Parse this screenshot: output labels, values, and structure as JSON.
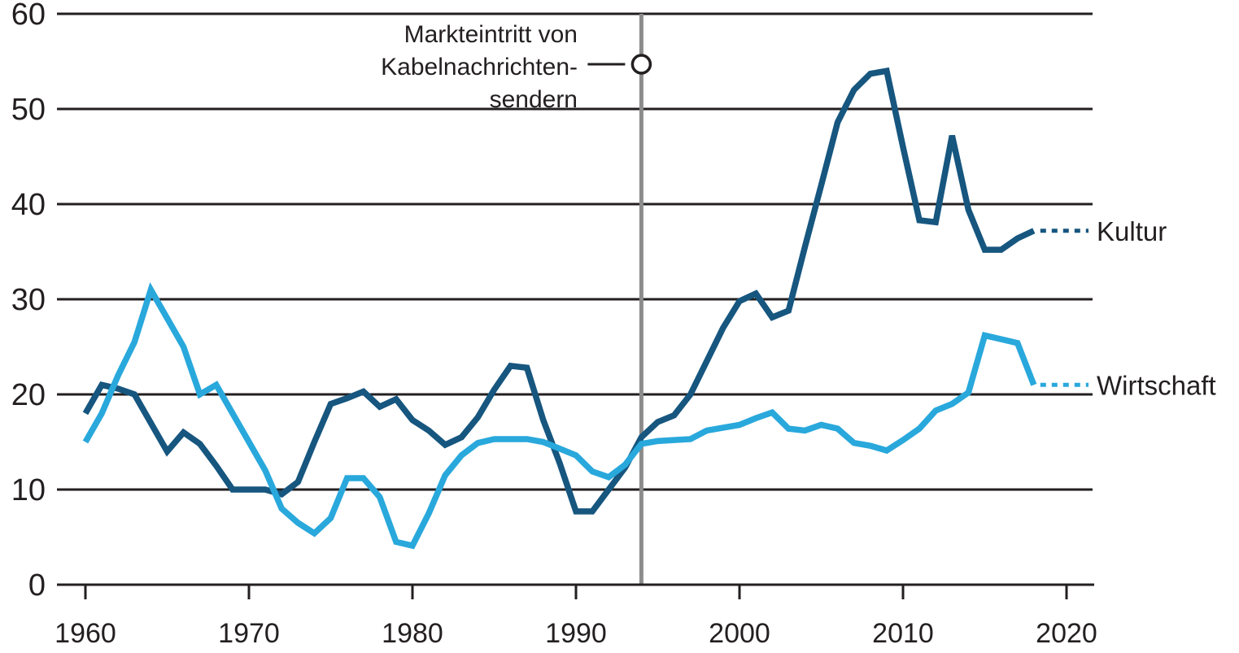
{
  "figure": {
    "background": "#ffffff",
    "colors": {
      "axis": "#231f20",
      "event_line": "#8c8c8c",
      "marker_stroke": "#231f20",
      "marker_fill": "#ffffff"
    },
    "annotation": {
      "lines": [
        "Markteintritt von",
        "Kabelnachrichten-",
        "sendern"
      ],
      "year": 1994,
      "marker": "open-circle"
    }
  },
  "chart_data": {
    "type": "line",
    "title": "",
    "xlabel": "",
    "ylabel": "",
    "legend_position": "right-of-line-ends",
    "grid": "horizontal",
    "ylim": [
      0,
      60
    ],
    "xlim": [
      1960,
      2020
    ],
    "yticks": [
      0,
      10,
      20,
      30,
      40,
      50,
      60
    ],
    "xticks": [
      1960,
      1970,
      1980,
      1990,
      2000,
      2010,
      2020
    ],
    "years": [
      1960,
      1961,
      1962,
      1963,
      1964,
      1965,
      1966,
      1967,
      1968,
      1969,
      1970,
      1971,
      1972,
      1973,
      1974,
      1975,
      1976,
      1977,
      1978,
      1979,
      1980,
      1981,
      1982,
      1983,
      1984,
      1985,
      1986,
      1987,
      1988,
      1989,
      1990,
      1991,
      1992,
      1993,
      1994,
      1995,
      1996,
      1997,
      1998,
      1999,
      2000,
      2001,
      2002,
      2003,
      2004,
      2005,
      2006,
      2007,
      2008,
      2009,
      2010,
      2011,
      2012,
      2013,
      2014,
      2015,
      2016,
      2017,
      2018
    ],
    "series": [
      {
        "name": "Kultur",
        "color": "#16567f",
        "values": [
          18,
          21,
          20.6,
          20,
          17,
          14,
          16,
          14.8,
          12.5,
          10,
          10,
          10,
          9.5,
          10.8,
          15,
          19,
          19.6,
          20.3,
          18.7,
          19.5,
          17.3,
          16.2,
          14.7,
          15.5,
          17.6,
          20.5,
          23,
          22.8,
          17.3,
          12.8,
          7.7,
          7.7,
          10,
          12.3,
          15.5,
          17.1,
          17.8,
          20,
          23.5,
          27,
          29.8,
          30.6,
          28.1,
          28.8,
          35.5,
          42,
          48.6,
          52,
          53.7,
          54,
          46,
          38.3,
          38.1,
          47.2,
          39.4,
          35.2,
          35.2,
          36.4,
          37.2
        ]
      },
      {
        "name": "Wirtschaft",
        "color": "#29a8dc",
        "values": [
          15,
          18,
          22,
          25.5,
          31,
          28,
          25,
          20,
          21,
          18,
          15,
          12,
          8,
          6.5,
          5.4,
          7,
          11.2,
          11.2,
          9.2,
          4.5,
          4.1,
          7.5,
          11.5,
          13.6,
          14.9,
          15.3,
          15.3,
          15.3,
          15,
          14.3,
          13.6,
          11.9,
          11.3,
          12.6,
          14.8,
          15.1,
          15.2,
          15.3,
          16.2,
          16.5,
          16.8,
          17.5,
          18.1,
          16.4,
          16.2,
          16.8,
          16.4,
          14.9,
          14.6,
          14.1,
          15.2,
          16.4,
          18.3,
          19,
          20.2,
          26.2,
          25.8,
          25.4,
          21
        ]
      }
    ]
  }
}
